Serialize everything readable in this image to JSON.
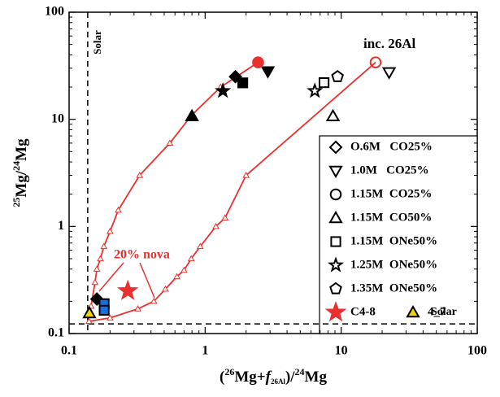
{
  "chart_data": {
    "type": "scatter",
    "log_x": true,
    "log_y": true,
    "xlim": [
      0.1,
      100
    ],
    "ylim": [
      0.1,
      100
    ],
    "xticks": [
      0.1,
      1,
      10,
      100
    ],
    "yticks": [
      0.1,
      1,
      10,
      100
    ],
    "xlabel": [
      "(",
      "26",
      "Mg+",
      "f",
      "26Al",
      ")/",
      "24",
      "Mg"
    ],
    "ylabel": [
      "25",
      "Mg/",
      "24",
      "Mg"
    ],
    "series": [
      {
        "name": "O.6M   CO25%",
        "marker": "diamond",
        "legend_color": "#000",
        "legend_fill": "none",
        "x": [
          1.67,
          0.16
        ],
        "values": [
          25,
          0.21
        ],
        "colors": [
          "#000",
          "#000"
        ],
        "fills": [
          "#000",
          "#000"
        ]
      },
      {
        "name": "1.0M   CO25%",
        "marker": "down",
        "legend_color": "#000",
        "legend_fill": "none",
        "x": [
          2.89,
          22.5
        ],
        "values": [
          28,
          27.5
        ],
        "colors": [
          "#000",
          "#000"
        ],
        "fills": [
          "#000",
          "none"
        ]
      },
      {
        "name": "1.15M  CO25%",
        "marker": "circle",
        "legend_color": "#000",
        "legend_fill": "none",
        "x": [
          2.45,
          17.9
        ],
        "values": [
          34,
          34
        ],
        "colors": [
          "#e8312f",
          "#e8312f"
        ],
        "fills": [
          "#e8312f",
          "none"
        ]
      },
      {
        "name": "1.15M  CO50%",
        "marker": "up",
        "legend_color": "#000",
        "legend_fill": "none",
        "x": [
          0.8,
          8.7
        ],
        "values": [
          10.7,
          10.7
        ],
        "colors": [
          "#000",
          "#000"
        ],
        "fills": [
          "#000",
          "none"
        ]
      },
      {
        "name": "1.15M  ONe50%",
        "marker": "square",
        "legend_color": "#000",
        "legend_fill": "none",
        "x": [
          1.89,
          7.48,
          0.181,
          0.181
        ],
        "values": [
          21.9,
          22,
          0.19,
          0.165
        ],
        "colors": [
          "#000",
          "#000",
          "#000",
          "#000"
        ],
        "fills": [
          "#000",
          "none",
          "#1a6fe0",
          "#1a6fe0"
        ]
      },
      {
        "name": "1.25M  ONe50%",
        "marker": "star",
        "legend_color": "#000",
        "legend_fill": "none",
        "x": [
          1.35,
          6.4
        ],
        "values": [
          18.4,
          18.4
        ],
        "colors": [
          "#000",
          "#000"
        ],
        "fills": [
          "#000",
          "none"
        ]
      },
      {
        "name": "1.35M  ONe50%",
        "marker": "pentagon",
        "legend_color": "#000",
        "legend_fill": "none",
        "x": [
          9.4
        ],
        "values": [
          25
        ],
        "colors": [
          "#000"
        ],
        "fills": [
          "none"
        ]
      },
      {
        "name": "C4-8",
        "marker": "star",
        "legend_color": "#e8312f",
        "legend_fill": "#e8312f",
        "x": [
          0.27
        ],
        "values": [
          0.25
        ],
        "colors": [
          "#e8312f"
        ],
        "fills": [
          "#e8312f"
        ]
      },
      {
        "name": "4_7",
        "marker": "up",
        "legend_color": "#000",
        "legend_fill": "#f5d20a",
        "x": [
          0.141
        ],
        "values": [
          0.155
        ],
        "colors": [
          "#000"
        ],
        "fills": [
          "#f5d20a"
        ]
      }
    ],
    "curves": [
      {
        "color": "#e8312f",
        "x": [
          0.14,
          0.145,
          0.155,
          0.16,
          0.17,
          0.18,
          0.2,
          0.23,
          0.33,
          0.55,
          0.8,
          1.3,
          2.45
        ],
        "values": [
          0.15,
          0.18,
          0.3,
          0.4,
          0.5,
          0.65,
          0.9,
          1.42,
          3.0,
          6.0,
          11,
          20,
          34
        ]
      },
      {
        "color": "#e8312f",
        "x": [
          0.14,
          0.2,
          0.32,
          0.42,
          0.51,
          0.62,
          0.7,
          0.79,
          0.92,
          1.2,
          1.4,
          2.0,
          17.9
        ],
        "values": [
          0.13,
          0.14,
          0.17,
          0.2,
          0.26,
          0.34,
          0.39,
          0.5,
          0.65,
          1.0,
          1.2,
          3.0,
          34
        ]
      }
    ],
    "solar_x": 0.137,
    "solar_y": 0.123,
    "solar_x_label": "Solar",
    "solar_y_label": "Solar",
    "annotation": "inc. 26Al",
    "nova_label": "20% nova"
  }
}
